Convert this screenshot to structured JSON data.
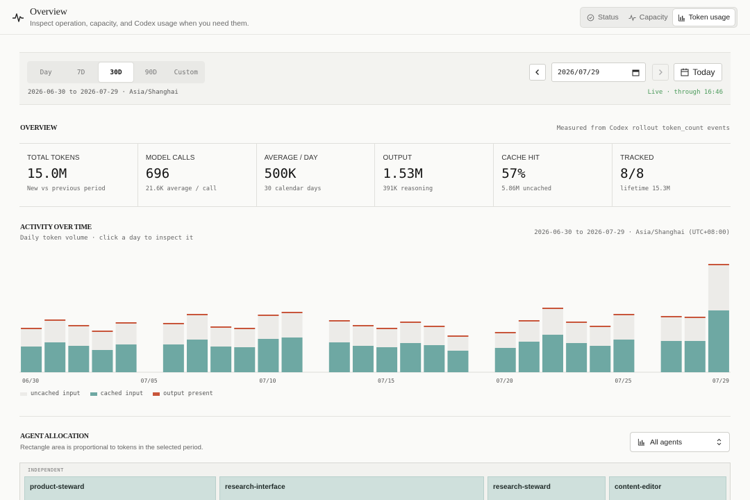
{
  "header": {
    "title": "Overview",
    "subtitle": "Inspect operation, capacity, and Codex usage when you need them.",
    "tabs": [
      {
        "label": "Status",
        "icon": "clock-icon",
        "active": false
      },
      {
        "label": "Capacity",
        "icon": "pulse-icon",
        "active": false
      },
      {
        "label": "Token usage",
        "icon": "bar-chart-icon",
        "active": true
      }
    ]
  },
  "range": {
    "periods": [
      "Day",
      "7D",
      "30D",
      "90D",
      "Custom"
    ],
    "active_period": "30D",
    "date_value": "2026/07/29",
    "today_label": "Today",
    "range_text": "2026-06-30 to 2026-07-29 · Asia/Shanghai",
    "live_text": "Live · through 16:46"
  },
  "overview": {
    "title": "OVERVIEW",
    "note": "Measured from Codex rollout token_count events",
    "stats": [
      {
        "label": "TOTAL TOKENS",
        "value": "15.0M",
        "sub": "New vs previous period"
      },
      {
        "label": "MODEL CALLS",
        "value": "696",
        "sub": "21.6K average / call"
      },
      {
        "label": "AVERAGE / DAY",
        "value": "500K",
        "sub": "30 calendar days"
      },
      {
        "label": "OUTPUT",
        "value": "1.53M",
        "sub": "391K reasoning"
      },
      {
        "label": "CACHE HIT",
        "value": "57%",
        "sub": "5.86M uncached"
      },
      {
        "label": "TRACKED",
        "value": "8/8",
        "sub": "lifetime 15.3M"
      }
    ]
  },
  "activity": {
    "title": "ACTIVITY OVER TIME",
    "subtitle": "Daily token volume · click a day to inspect it",
    "range_note": "2026-06-30 to 2026-07-29 · Asia/Shanghai (UTC+08:00)",
    "legend": [
      {
        "label": "uncached input",
        "color": "#ecebe8"
      },
      {
        "label": "cached input",
        "color": "#6ea8a3"
      },
      {
        "label": "output present",
        "color": "#c8553a"
      }
    ]
  },
  "chart_data": {
    "type": "bar",
    "stacked": true,
    "categories": [
      "06/30",
      "07/01",
      "07/02",
      "07/03",
      "07/04",
      "07/05",
      "07/06",
      "07/07",
      "07/08",
      "07/09",
      "07/10",
      "07/11",
      "07/12",
      "07/13",
      "07/14",
      "07/15",
      "07/16",
      "07/17",
      "07/18",
      "07/19",
      "07/20",
      "07/21",
      "07/22",
      "07/23",
      "07/24",
      "07/25",
      "07/26",
      "07/27",
      "07/28",
      "07/29"
    ],
    "tick_labels": [
      "06/30",
      "07/05",
      "07/10",
      "07/15",
      "07/20",
      "07/25",
      "07/29"
    ],
    "series": [
      {
        "name": "cached input",
        "values": [
          37,
          43,
          38,
          32,
          40,
          0,
          40,
          47,
          37,
          36,
          48,
          50,
          0,
          43,
          38,
          36,
          42,
          39,
          31,
          0,
          35,
          44,
          54,
          42,
          38,
          47,
          0,
          45,
          45,
          89
        ]
      },
      {
        "name": "uncached input",
        "values": [
          25,
          31,
          28,
          26,
          30,
          0,
          29,
          35,
          27,
          26,
          33,
          35,
          0,
          30,
          28,
          26,
          29,
          26,
          20,
          0,
          21,
          29,
          37,
          29,
          27,
          35,
          0,
          34,
          33,
          65
        ]
      },
      {
        "name": "output present",
        "values": [
          2,
          2,
          2,
          2,
          2,
          0,
          2,
          2,
          2,
          2,
          2,
          2,
          0,
          2,
          2,
          2,
          2,
          2,
          2,
          0,
          2,
          2,
          2,
          2,
          2,
          2,
          0,
          2,
          2,
          2
        ]
      }
    ]
  },
  "agents": {
    "title": "AGENT ALLOCATION",
    "subtitle": "Rectangle area is proportional to tokens in the selected period.",
    "select_label": "All agents",
    "group_label": "INDEPENDENT",
    "tiles": [
      "product-steward",
      "research-interface",
      "research-steward",
      "content-editor"
    ]
  }
}
